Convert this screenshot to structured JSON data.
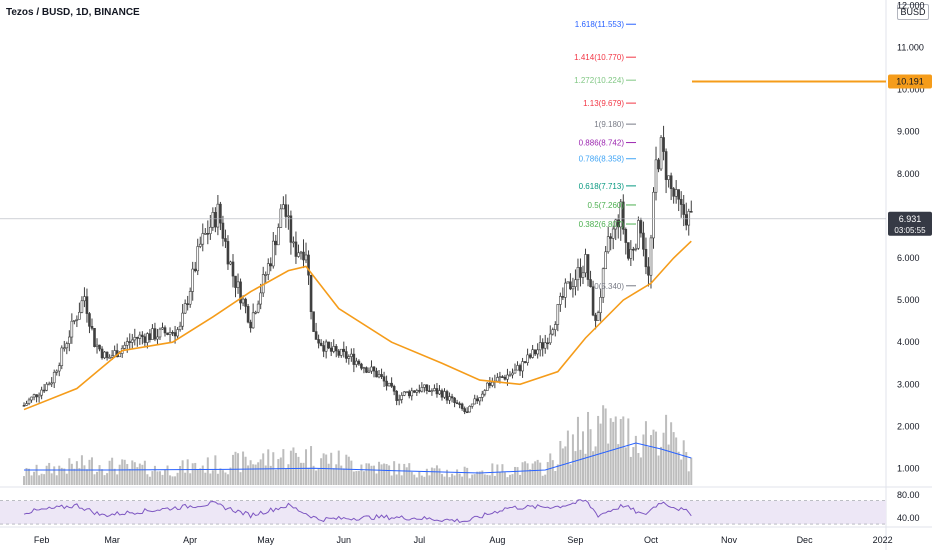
{
  "header": {
    "title": "Tezos / BUSD, 1D, BINANCE",
    "currency": "BUSD"
  },
  "chart_data": {
    "type": "candlestick",
    "title": "Tezos / BUSD, 1D, BINANCE",
    "x_ticks": [
      "Feb",
      "Mar",
      "Apr",
      "May",
      "Jun",
      "Jul",
      "Aug",
      "Sep",
      "Oct",
      "Nov",
      "Dec",
      "2022"
    ],
    "y_ticks": [
      "12.000",
      "11.000",
      "10.000",
      "9.000",
      "8.000",
      "7.000",
      "6.000",
      "5.000",
      "4.000",
      "3.000",
      "2.000",
      "1.000"
    ],
    "ylim": [
      0.5,
      12.0
    ],
    "price_path": [
      {
        "date": "2021-01-25",
        "close": 2.5
      },
      {
        "date": "2021-02-05",
        "close": 3.1
      },
      {
        "date": "2021-02-12",
        "close": 4.2
      },
      {
        "date": "2021-02-18",
        "close": 5.1
      },
      {
        "date": "2021-02-22",
        "close": 4.0
      },
      {
        "date": "2021-02-27",
        "close": 3.6
      },
      {
        "date": "2021-03-10",
        "close": 4.1
      },
      {
        "date": "2021-03-20",
        "close": 4.2
      },
      {
        "date": "2021-03-28",
        "close": 4.3
      },
      {
        "date": "2021-04-05",
        "close": 6.3
      },
      {
        "date": "2021-04-12",
        "close": 7.1
      },
      {
        "date": "2021-04-18",
        "close": 5.6
      },
      {
        "date": "2021-04-25",
        "close": 4.5
      },
      {
        "date": "2021-05-03",
        "close": 6.0
      },
      {
        "date": "2021-05-08",
        "close": 7.3
      },
      {
        "date": "2021-05-12",
        "close": 6.2
      },
      {
        "date": "2021-05-17",
        "close": 6.2
      },
      {
        "date": "2021-05-20",
        "close": 4.2
      },
      {
        "date": "2021-05-26",
        "close": 3.8
      },
      {
        "date": "2021-06-05",
        "close": 3.6
      },
      {
        "date": "2021-06-15",
        "close": 3.2
      },
      {
        "date": "2021-06-22",
        "close": 2.7
      },
      {
        "date": "2021-07-01",
        "close": 2.9
      },
      {
        "date": "2021-07-10",
        "close": 2.8
      },
      {
        "date": "2021-07-20",
        "close": 2.3
      },
      {
        "date": "2021-07-28",
        "close": 3.0
      },
      {
        "date": "2021-08-08",
        "close": 3.3
      },
      {
        "date": "2021-08-20",
        "close": 4.0
      },
      {
        "date": "2021-08-28",
        "close": 5.2
      },
      {
        "date": "2021-09-05",
        "close": 5.9
      },
      {
        "date": "2021-09-09",
        "close": 4.4
      },
      {
        "date": "2021-09-14",
        "close": 6.3
      },
      {
        "date": "2021-09-19",
        "close": 7.1
      },
      {
        "date": "2021-09-22",
        "close": 6.0
      },
      {
        "date": "2021-09-27",
        "close": 6.8
      },
      {
        "date": "2021-09-30",
        "close": 5.5
      },
      {
        "date": "2021-10-03",
        "close": 8.2
      },
      {
        "date": "2021-10-05",
        "close": 8.6
      },
      {
        "date": "2021-10-09",
        "close": 7.6
      },
      {
        "date": "2021-10-13",
        "close": 7.1
      },
      {
        "date": "2021-10-17",
        "close": 6.93
      }
    ],
    "ema_path": [
      {
        "date": "2021-01-25",
        "value": 2.4
      },
      {
        "date": "2021-02-15",
        "value": 2.9
      },
      {
        "date": "2021-03-05",
        "value": 3.8
      },
      {
        "date": "2021-03-25",
        "value": 4.0
      },
      {
        "date": "2021-04-10",
        "value": 4.6
      },
      {
        "date": "2021-04-25",
        "value": 5.2
      },
      {
        "date": "2021-05-10",
        "value": 5.7
      },
      {
        "date": "2021-05-17",
        "value": 5.8
      },
      {
        "date": "2021-05-30",
        "value": 4.8
      },
      {
        "date": "2021-06-20",
        "value": 4.0
      },
      {
        "date": "2021-07-10",
        "value": 3.5
      },
      {
        "date": "2021-07-25",
        "value": 3.1
      },
      {
        "date": "2021-08-10",
        "value": 3.0
      },
      {
        "date": "2021-08-25",
        "value": 3.3
      },
      {
        "date": "2021-09-05",
        "value": 4.1
      },
      {
        "date": "2021-09-20",
        "value": 5.0
      },
      {
        "date": "2021-10-01",
        "value": 5.4
      },
      {
        "date": "2021-10-10",
        "value": 6.0
      },
      {
        "date": "2021-10-17",
        "value": 6.4
      }
    ],
    "volume_profile": [
      {
        "date": "2021-01-25",
        "value": 0.2
      },
      {
        "date": "2021-02-20",
        "value": 0.35
      },
      {
        "date": "2021-03-20",
        "value": 0.25
      },
      {
        "date": "2021-04-15",
        "value": 0.35
      },
      {
        "date": "2021-05-15",
        "value": 0.5
      },
      {
        "date": "2021-06-15",
        "value": 0.3
      },
      {
        "date": "2021-07-15",
        "value": 0.2
      },
      {
        "date": "2021-08-20",
        "value": 0.3
      },
      {
        "date": "2021-09-08",
        "value": 1.0
      },
      {
        "date": "2021-09-25",
        "value": 0.8
      },
      {
        "date": "2021-10-05",
        "value": 0.9
      },
      {
        "date": "2021-10-17",
        "value": 0.4
      }
    ],
    "volume_ma": [
      {
        "date": "2021-01-25",
        "value": 0.25
      },
      {
        "date": "2021-03-01",
        "value": 0.25
      },
      {
        "date": "2021-04-15",
        "value": 0.26
      },
      {
        "date": "2021-05-20",
        "value": 0.28
      },
      {
        "date": "2021-06-20",
        "value": 0.24
      },
      {
        "date": "2021-07-25",
        "value": 0.2
      },
      {
        "date": "2021-08-20",
        "value": 0.25
      },
      {
        "date": "2021-09-05",
        "value": 0.45
      },
      {
        "date": "2021-09-25",
        "value": 0.7
      },
      {
        "date": "2021-10-05",
        "value": 0.6
      },
      {
        "date": "2021-10-17",
        "value": 0.45
      }
    ],
    "fib_levels": [
      {
        "label": "1.618(11.553)",
        "value": 11.553,
        "color": "#2962ff"
      },
      {
        "label": "1.414(10.770)",
        "value": 10.77,
        "color": "#f23645"
      },
      {
        "label": "1.272(10.224)",
        "value": 10.224,
        "color": "#81c784"
      },
      {
        "label": "1.13(9.679)",
        "value": 9.679,
        "color": "#f23645"
      },
      {
        "label": "1(9.180)",
        "value": 9.18,
        "color": "#787b86"
      },
      {
        "label": "0.886(8.742)",
        "value": 8.742,
        "color": "#9c27b0"
      },
      {
        "label": "0.786(8.358)",
        "value": 8.358,
        "color": "#42a5f5"
      },
      {
        "label": "0.618(7.713)",
        "value": 7.713,
        "color": "#089981"
      },
      {
        "label": "0.5(7.260)",
        "value": 7.26,
        "color": "#4caf50"
      },
      {
        "label": "0.382(6.807)",
        "value": 6.807,
        "color": "#4caf50"
      },
      {
        "label": "0(5.340)",
        "value": 5.34,
        "color": "#787b86"
      }
    ],
    "horizontal_line": {
      "value": 10.191,
      "label": "10.191",
      "color": "#f59c1a"
    },
    "current_price": {
      "value": 6.931,
      "label": "6.931",
      "countdown": "03:05:55"
    },
    "rsi": {
      "ticks": [
        "80.00",
        "40.00"
      ],
      "upper": 70,
      "lower": 30,
      "ylim": [
        25,
        90
      ],
      "path": [
        {
          "date": "2021-01-25",
          "value": 50
        },
        {
          "date": "2021-02-15",
          "value": 62
        },
        {
          "date": "2021-02-25",
          "value": 45
        },
        {
          "date": "2021-03-20",
          "value": 55
        },
        {
          "date": "2021-04-10",
          "value": 65
        },
        {
          "date": "2021-04-25",
          "value": 45
        },
        {
          "date": "2021-05-10",
          "value": 62
        },
        {
          "date": "2021-05-22",
          "value": 38
        },
        {
          "date": "2021-06-15",
          "value": 42
        },
        {
          "date": "2021-07-01",
          "value": 40
        },
        {
          "date": "2021-07-20",
          "value": 35
        },
        {
          "date": "2021-08-05",
          "value": 58
        },
        {
          "date": "2021-08-25",
          "value": 60
        },
        {
          "date": "2021-09-05",
          "value": 70
        },
        {
          "date": "2021-09-10",
          "value": 45
        },
        {
          "date": "2021-09-20",
          "value": 62
        },
        {
          "date": "2021-09-28",
          "value": 45
        },
        {
          "date": "2021-10-05",
          "value": 68
        },
        {
          "date": "2021-10-17",
          "value": 48
        }
      ]
    },
    "colors": {
      "candle": "#3f3f3f",
      "ema": "#f59c1a",
      "vol": "#bdbdbd",
      "vol_ma": "#2962ff",
      "rsi": "#7e57c2",
      "rsi_band": "#ede7f6"
    }
  }
}
